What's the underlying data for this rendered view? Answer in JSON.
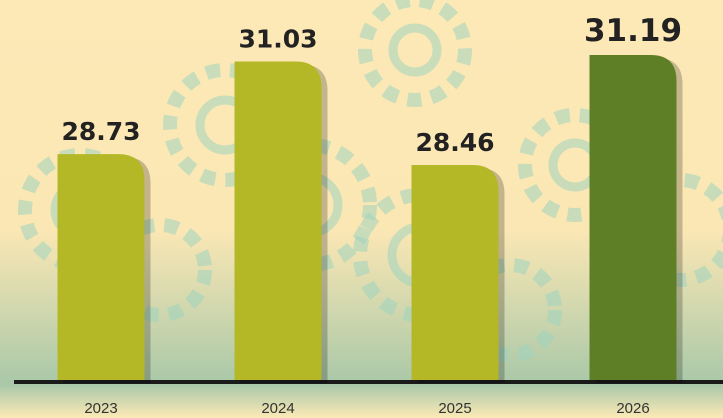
{
  "chart_data": {
    "type": "bar",
    "categories": [
      "2023",
      "2024",
      "2025",
      "2026"
    ],
    "values": [
      28.73,
      31.03,
      28.46,
      31.19
    ],
    "colors": [
      "#b4b827",
      "#b4b827",
      "#b4b827",
      "#5e7f25"
    ]
  }
}
